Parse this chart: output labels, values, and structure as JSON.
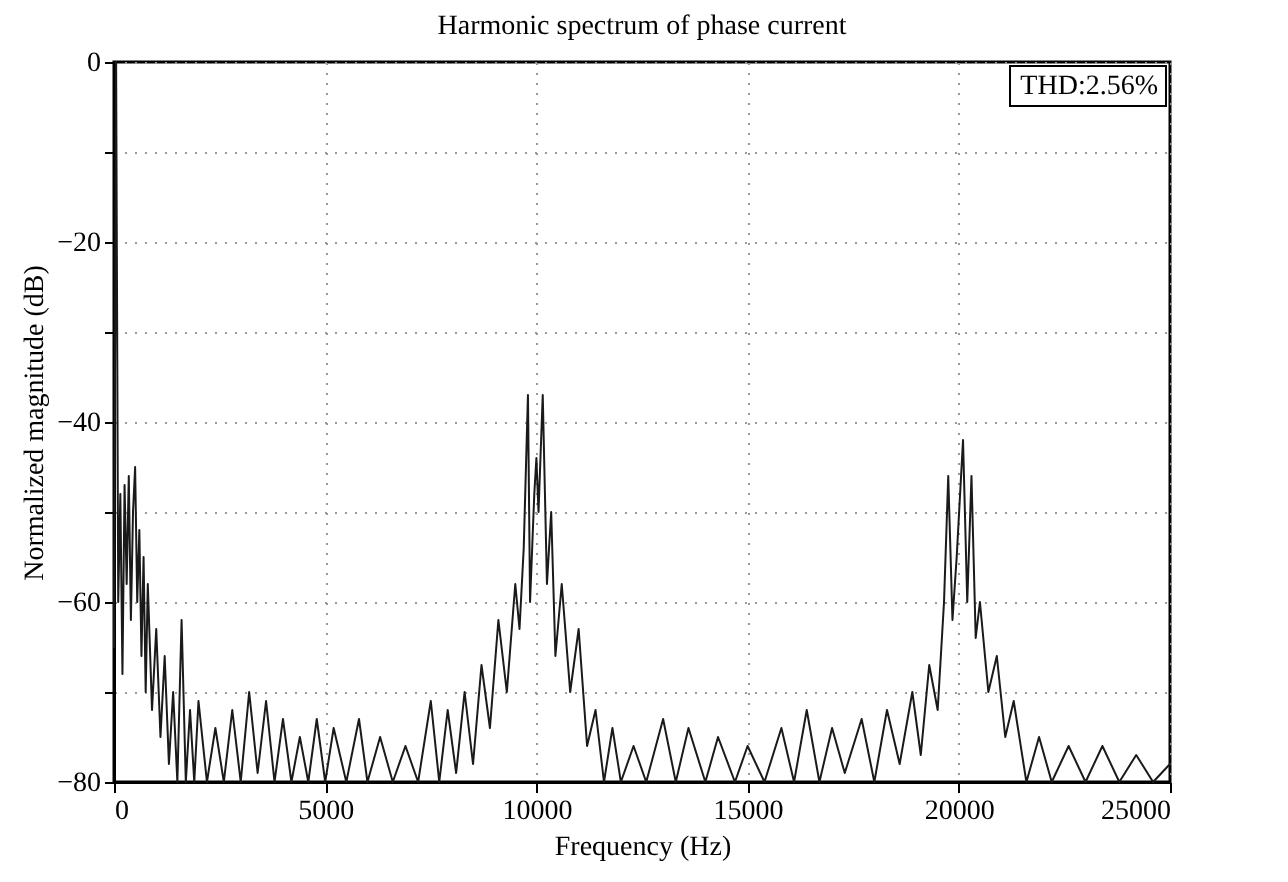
{
  "chart_data": {
    "type": "line",
    "title": "Harmonic spectrum of phase current",
    "xlabel": "Frequency (Hz)",
    "ylabel": "Normalized magnitude (dB)",
    "annotations": [
      "THD:2.56%"
    ],
    "x": [
      0,
      50,
      100,
      150,
      200,
      250,
      300,
      350,
      400,
      450,
      500,
      550,
      600,
      650,
      700,
      750,
      800,
      900,
      1000,
      1100,
      1200,
      1300,
      1400,
      1500,
      1600,
      1700,
      1800,
      1900,
      2000,
      2200,
      2400,
      2600,
      2800,
      3000,
      3200,
      3400,
      3600,
      3800,
      4000,
      4200,
      4400,
      4600,
      4800,
      5000,
      5200,
      5500,
      5800,
      6000,
      6300,
      6600,
      6900,
      7200,
      7500,
      7700,
      7900,
      8100,
      8300,
      8500,
      8700,
      8900,
      9100,
      9300,
      9500,
      9600,
      9700,
      9800,
      9850,
      9950,
      10000,
      10050,
      10150,
      10250,
      10350,
      10450,
      10600,
      10800,
      11000,
      11200,
      11400,
      11600,
      11800,
      12000,
      12300,
      12600,
      13000,
      13300,
      13600,
      14000,
      14300,
      14700,
      15000,
      15400,
      15800,
      16100,
      16400,
      16700,
      17000,
      17300,
      17700,
      18000,
      18300,
      18600,
      18900,
      19100,
      19300,
      19500,
      19650,
      19750,
      19850,
      19950,
      20100,
      20200,
      20300,
      20400,
      20500,
      20700,
      20900,
      21100,
      21300,
      21600,
      21900,
      22200,
      22600,
      23000,
      23400,
      23800,
      24200,
      24600,
      25000
    ],
    "series": [
      {
        "color": "#1a1a1a",
        "values": [
          -65,
          0,
          -60,
          -48,
          -68,
          -47,
          -58,
          -46,
          -62,
          -50,
          -45,
          -60,
          -52,
          -66,
          -55,
          -70,
          -58,
          -72,
          -63,
          -75,
          -66,
          -78,
          -70,
          -80,
          -62,
          -80,
          -72,
          -80,
          -71,
          -80,
          -74,
          -80,
          -72,
          -80,
          -70,
          -79,
          -71,
          -80,
          -73,
          -80,
          -75,
          -80,
          -73,
          -80,
          -74,
          -80,
          -73,
          -80,
          -75,
          -80,
          -76,
          -80,
          -71,
          -80,
          -72,
          -79,
          -70,
          -78,
          -67,
          -74,
          -62,
          -70,
          -58,
          -63,
          -54,
          -37,
          -60,
          -48,
          -44,
          -50,
          -37,
          -58,
          -50,
          -66,
          -58,
          -70,
          -63,
          -76,
          -72,
          -80,
          -74,
          -80,
          -76,
          -80,
          -73,
          -80,
          -74,
          -80,
          -75,
          -80,
          -76,
          -80,
          -74,
          -80,
          -72,
          -80,
          -74,
          -79,
          -73,
          -80,
          -72,
          -78,
          -70,
          -77,
          -67,
          -72,
          -60,
          -46,
          -62,
          -55,
          -42,
          -60,
          -46,
          -64,
          -60,
          -70,
          -66,
          -75,
          -71,
          -80,
          -75,
          -80,
          -76,
          -80,
          -76,
          -80,
          -77,
          -80,
          -78
        ]
      }
    ],
    "xlim": [
      0,
      25000
    ],
    "xticks": [
      0,
      5000,
      10000,
      15000,
      20000,
      25000
    ],
    "ylim": [
      -80,
      0
    ],
    "yticks": [
      -80,
      {
        "value": -70,
        "label": null
      },
      -60,
      {
        "value": -50,
        "label": null
      },
      -40,
      {
        "value": -30,
        "label": null
      },
      -20,
      {
        "value": -10,
        "label": null
      },
      0
    ],
    "grid": true,
    "line_style": "solid",
    "marker": "none"
  }
}
